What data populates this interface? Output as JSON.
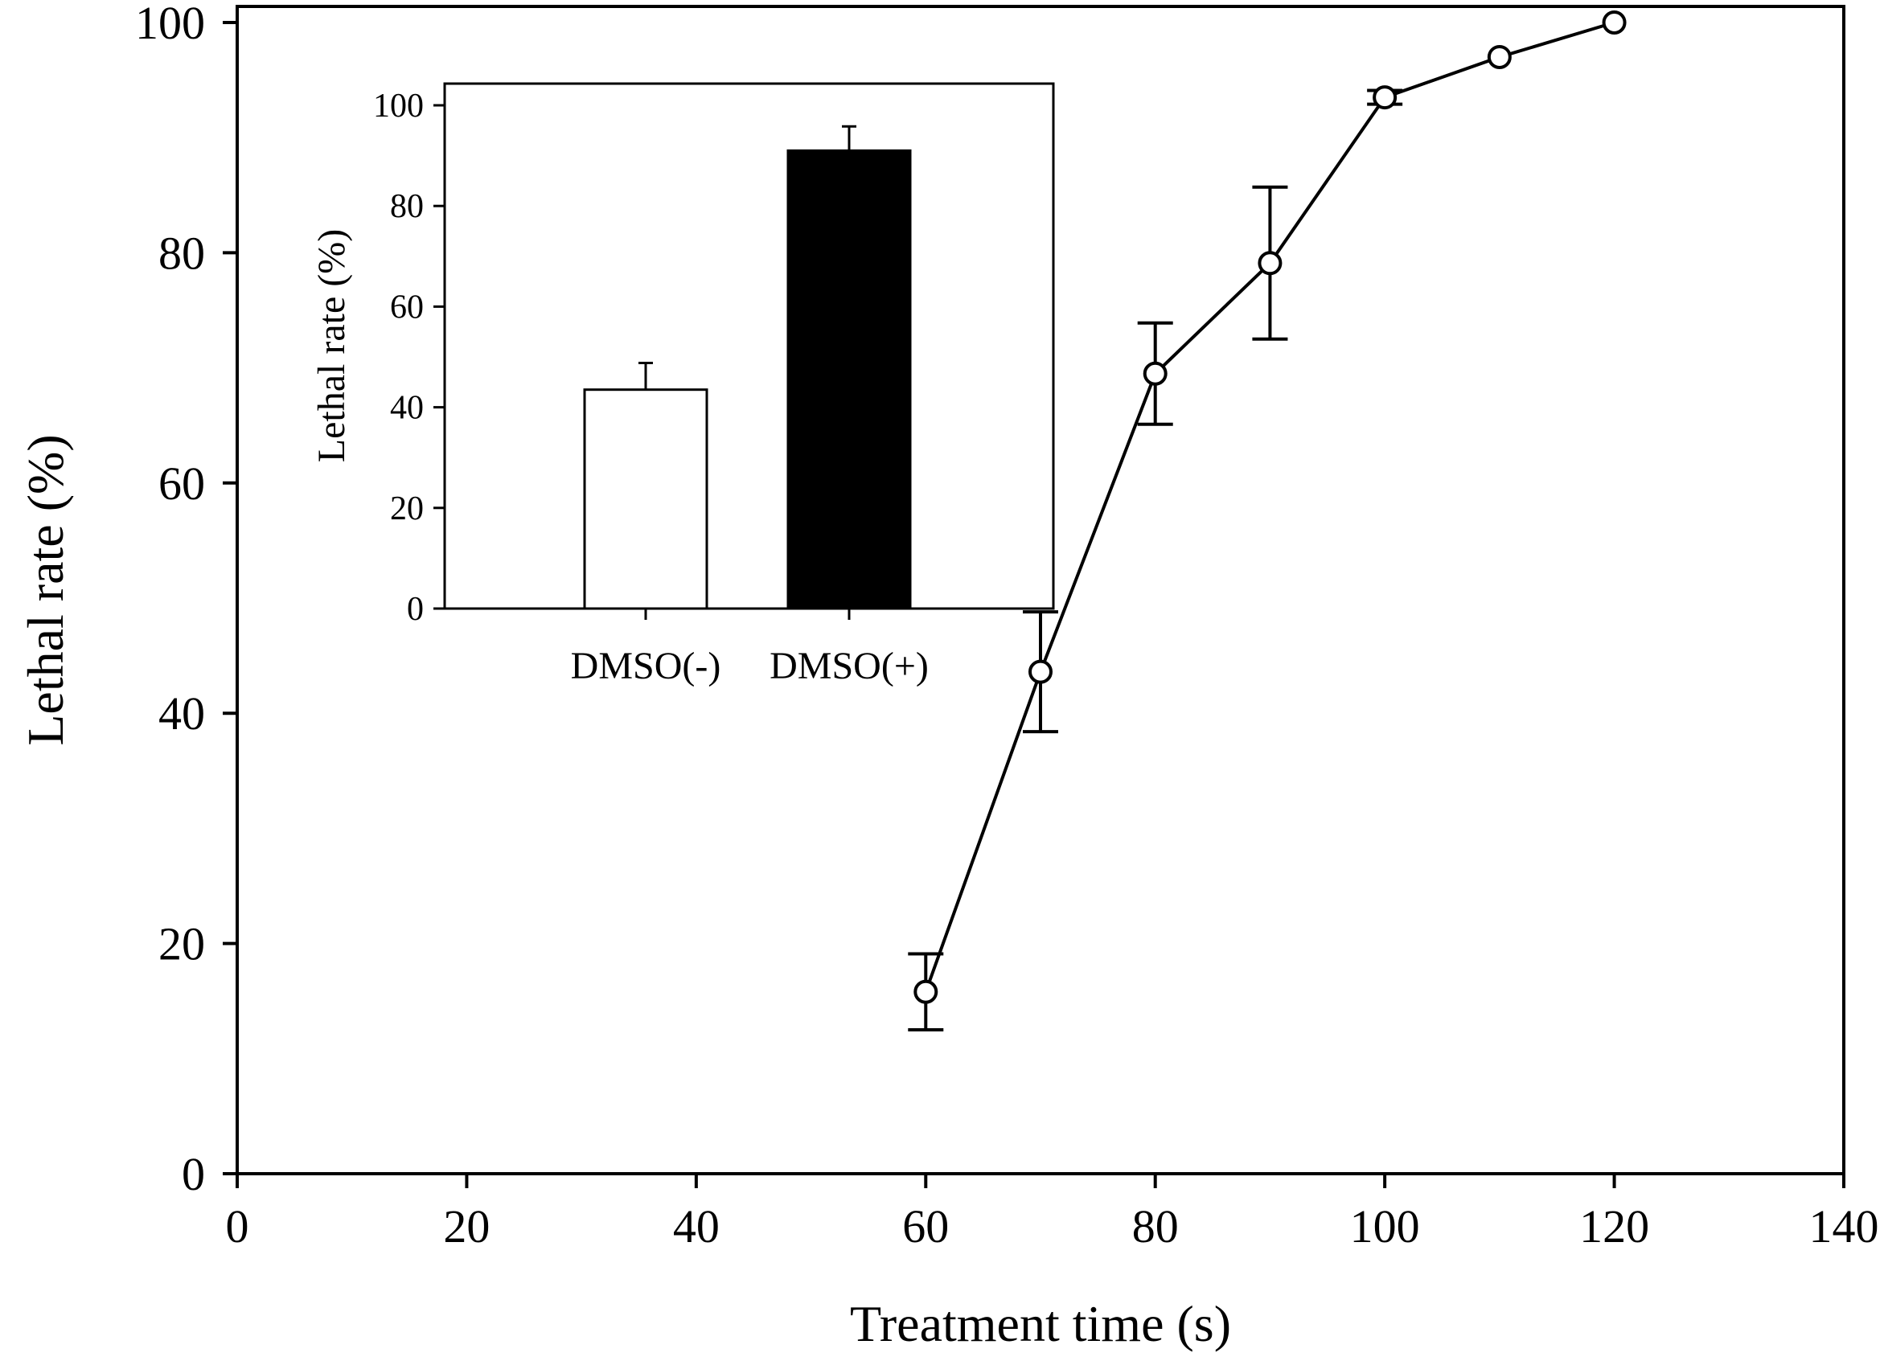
{
  "chart_data": [
    {
      "type": "line",
      "xlabel": "Treatment time (s)",
      "ylabel": "Lethal rate (%)",
      "xlim": [
        0,
        140
      ],
      "ylim": [
        0,
        100
      ],
      "xticks": [
        0,
        20,
        40,
        60,
        80,
        100,
        120,
        140
      ],
      "yticks": [
        0,
        20,
        40,
        60,
        80,
        100
      ],
      "grid": false,
      "marker": "open-circle",
      "series": [
        {
          "x": [
            60,
            70,
            80,
            90,
            100,
            110,
            120
          ],
          "y": [
            15.8,
            43.6,
            69.5,
            79.1,
            93.5,
            97.0,
            100.0
          ],
          "error": [
            3.3,
            5.2,
            4.4,
            6.6,
            0.6,
            0.0,
            0.0
          ]
        }
      ]
    },
    {
      "type": "bar",
      "ylabel": "Lethal rate (%)",
      "ylim": [
        0,
        100
      ],
      "yticks": [
        0,
        20,
        40,
        60,
        80,
        100
      ],
      "categories": [
        "DMSO(-)",
        "DMSO(+)"
      ],
      "values": [
        43.5,
        91.0
      ],
      "error": [
        5.3,
        4.8
      ],
      "colors": [
        "#ffffff",
        "#000000"
      ]
    }
  ]
}
